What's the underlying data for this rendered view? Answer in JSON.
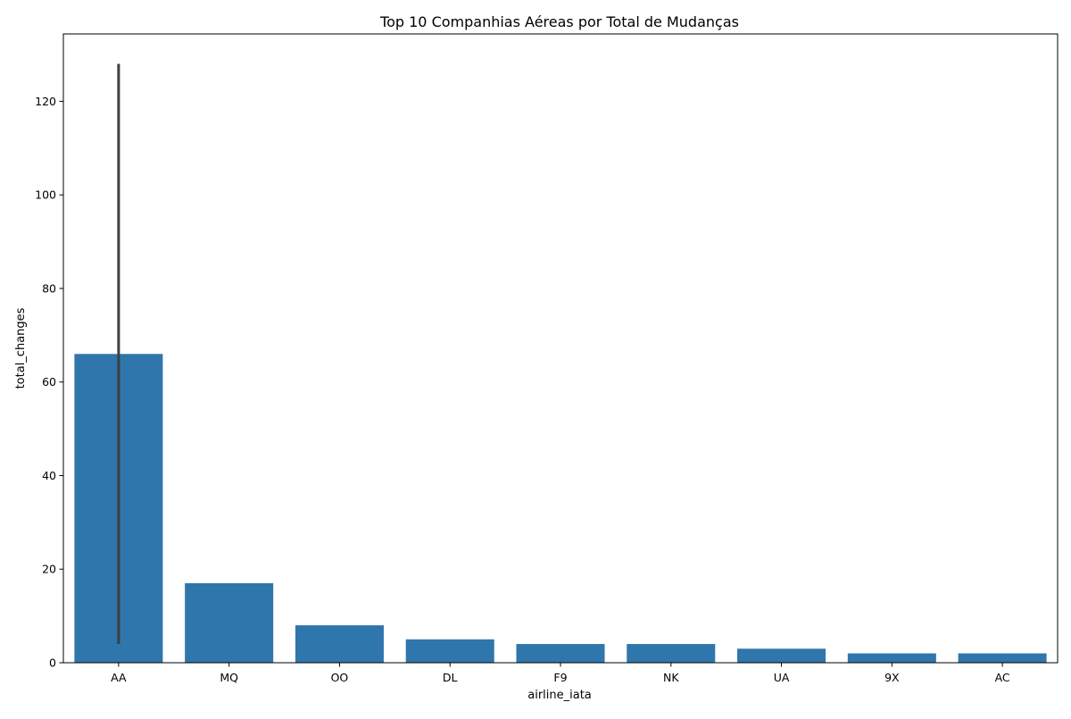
{
  "chart_data": {
    "type": "bar",
    "title": "Top 10 Companhias Aéreas por Total de Mudanças",
    "xlabel": "airline_iata",
    "ylabel": "total_changes",
    "categories": [
      "AA",
      "MQ",
      "OO",
      "DL",
      "F9",
      "NK",
      "UA",
      "9X",
      "AC"
    ],
    "values": [
      66,
      17,
      8,
      5,
      4,
      4,
      3,
      2,
      2
    ],
    "error_bars": [
      {
        "category": "AA",
        "low": 4,
        "high": 128
      }
    ],
    "ylim": [
      0,
      134.4
    ],
    "yticks": [
      0,
      20,
      40,
      60,
      80,
      100,
      120
    ],
    "grid": false,
    "legend": "none",
    "bar_color": "#2f76ac",
    "error_color": "#3f3f3f"
  }
}
